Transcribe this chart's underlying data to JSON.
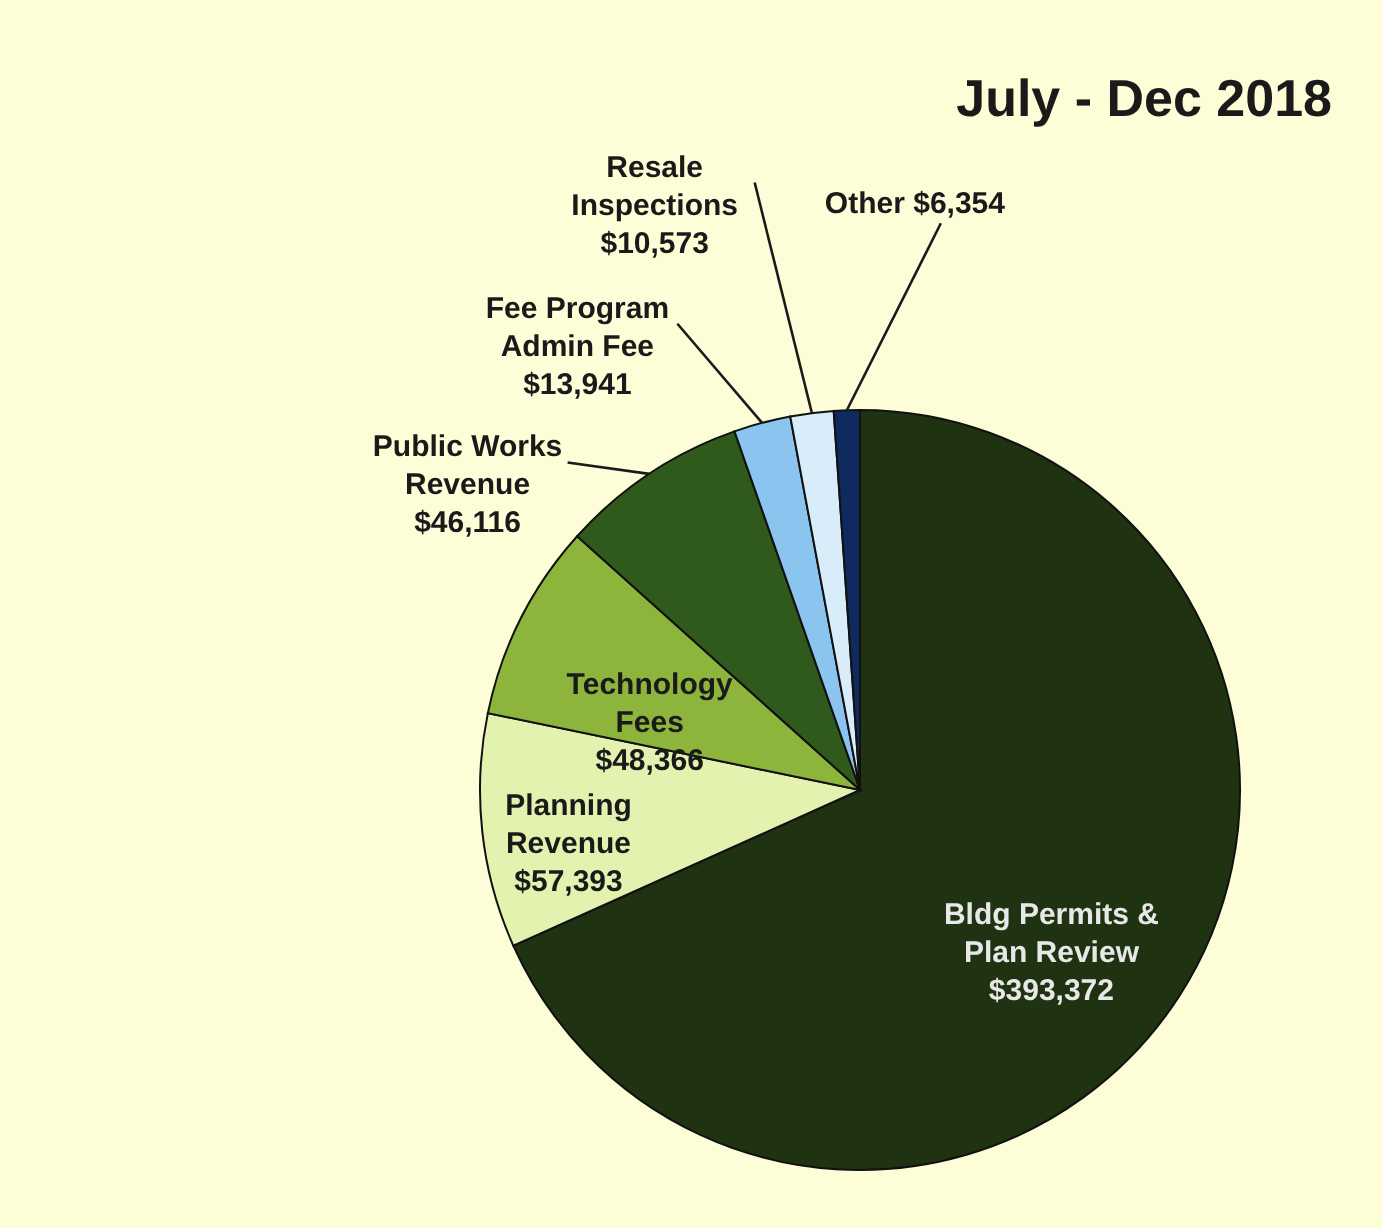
{
  "chart_data": {
    "type": "pie",
    "title": "July - Dec 2018",
    "categories": [
      "Bldg Permits & Plan Review",
      "Planning Revenue",
      "Technology Fees",
      "Public Works Revenue",
      "Fee Program Admin Fee",
      "Resale Inspections",
      "Other"
    ],
    "values": [
      393372,
      57393,
      48366,
      46116,
      13941,
      10573,
      6354
    ],
    "colors": [
      "#1f3312",
      "#e4f2b0",
      "#8db53c",
      "#2f5a1c",
      "#8cc4f0",
      "#d8ecfa",
      "#0e2a5e"
    ],
    "value_labels": [
      "$393,372",
      "$57,393",
      "$48,366",
      "$46,116",
      "$13,941",
      "$10,573",
      "$6,354"
    ]
  }
}
